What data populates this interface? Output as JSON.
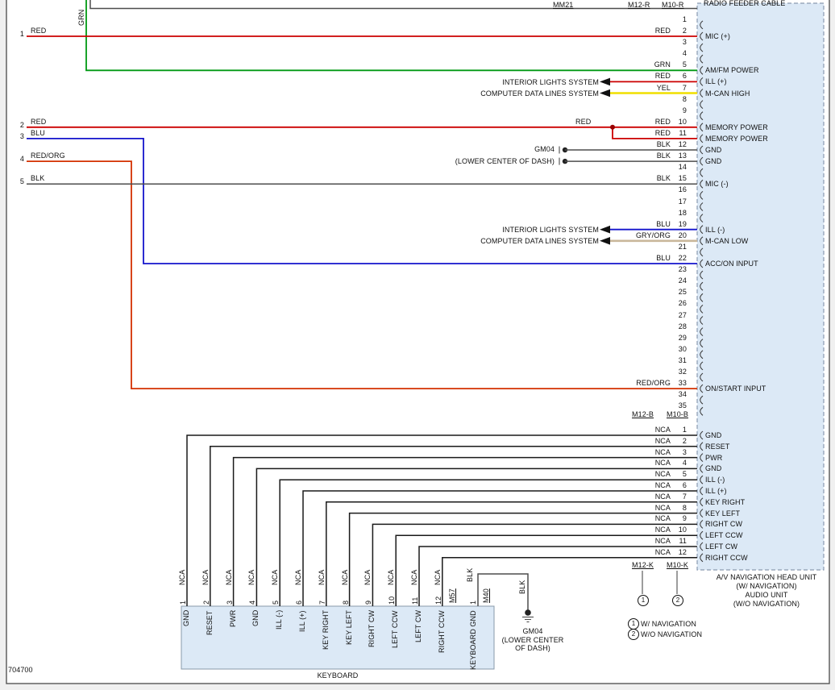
{
  "diagram_number": "704700",
  "colors": {
    "RED": "#cc0000",
    "GRN": "#009913",
    "YEL": "#f0df00",
    "BLU": "#1414cc",
    "BLK": "#4d4d4d",
    "RED/ORG": "#d43000",
    "GRY/ORG": "#c9b79b",
    "box_fill": "#dce9f6",
    "box_border": "#8a9ab0"
  },
  "head_unit": {
    "cable_label": "RADIO FEEDER CABLE",
    "name_lines": [
      "A/V NAVIGATION HEAD UNIT",
      "(W/ NAVIGATION)",
      "AUDIO UNIT",
      "(W/O NAVIGATION)"
    ],
    "connector_labels": {
      "mm21": "MM21",
      "m12r": "M12-R",
      "m10r": "M10-R",
      "m12b": "M12-B",
      "m10b": "M10-B",
      "m12k": "M12-K",
      "m10k": "M10-K"
    },
    "legend": [
      {
        "num": "1",
        "text": "W/ NAVIGATION"
      },
      {
        "num": "2",
        "text": "W/O NAVIGATION"
      }
    ]
  },
  "connector_r": {
    "pin_count": 35,
    "pins": [
      {
        "pin": 2,
        "wire": "RED",
        "label": "MIC (+)"
      },
      {
        "pin": 5,
        "wire": "GRN",
        "label": "AM/FM POWER"
      },
      {
        "pin": 6,
        "wire": "RED",
        "label": "ILL (+)"
      },
      {
        "pin": 7,
        "wire": "YEL",
        "label": "M-CAN HIGH"
      },
      {
        "pin": 10,
        "wire": "RED",
        "label": "MEMORY POWER"
      },
      {
        "pin": 11,
        "wire": "RED",
        "label": "MEMORY POWER"
      },
      {
        "pin": 12,
        "wire": "BLK",
        "label": "GND"
      },
      {
        "pin": 13,
        "wire": "BLK",
        "label": "GND"
      },
      {
        "pin": 15,
        "wire": "BLK",
        "label": "MIC (-)"
      },
      {
        "pin": 19,
        "wire": "BLU",
        "label": "ILL (-)"
      },
      {
        "pin": 20,
        "wire": "GRY/ORG",
        "label": "M-CAN LOW"
      },
      {
        "pin": 22,
        "wire": "BLU",
        "label": "ACC/ON INPUT"
      },
      {
        "pin": 33,
        "wire": "RED/ORG",
        "label": "ON/START INPUT"
      }
    ]
  },
  "connector_b": {
    "pin_count": 12,
    "pins": [
      {
        "pin": 1,
        "wire": "NCA",
        "label": "GND"
      },
      {
        "pin": 2,
        "wire": "NCA",
        "label": "RESET"
      },
      {
        "pin": 3,
        "wire": "NCA",
        "label": "PWR"
      },
      {
        "pin": 4,
        "wire": "NCA",
        "label": "GND"
      },
      {
        "pin": 5,
        "wire": "NCA",
        "label": "ILL (-)"
      },
      {
        "pin": 6,
        "wire": "NCA",
        "label": "ILL (+)"
      },
      {
        "pin": 7,
        "wire": "NCA",
        "label": "KEY RIGHT"
      },
      {
        "pin": 8,
        "wire": "NCA",
        "label": "KEY LEFT"
      },
      {
        "pin": 9,
        "wire": "NCA",
        "label": "RIGHT CW"
      },
      {
        "pin": 10,
        "wire": "NCA",
        "label": "LEFT CCW"
      },
      {
        "pin": 11,
        "wire": "NCA",
        "label": "LEFT CW"
      },
      {
        "pin": 12,
        "wire": "NCA",
        "label": "RIGHT CCW"
      }
    ]
  },
  "left_wires": [
    {
      "num": "1",
      "color": "RED"
    },
    {
      "num": "2",
      "color": "RED"
    },
    {
      "num": "3",
      "color": "BLU"
    },
    {
      "num": "4",
      "color": "RED/ORG"
    },
    {
      "num": "5",
      "color": "BLK"
    }
  ],
  "references": {
    "interior_lights": "INTERIOR LIGHTS SYSTEM",
    "computer_data": "COMPUTER DATA LINES SYSTEM",
    "gm04": "GM04",
    "lower_center_of_dash": "(LOWER CENTER OF DASH)",
    "gm04_block_lines": [
      "GM04",
      "(LOWER CENTER",
      "OF DASH)"
    ],
    "grn_vertical": "GRN",
    "memory_red_label": "RED"
  },
  "keyboard": {
    "title": "KEYBOARD",
    "connector_main": "M57",
    "connector_gnd": "M40",
    "gnd_pin": "1",
    "gnd_wire_color": "BLK",
    "gnd_label": "KEYBOARD GND"
  }
}
